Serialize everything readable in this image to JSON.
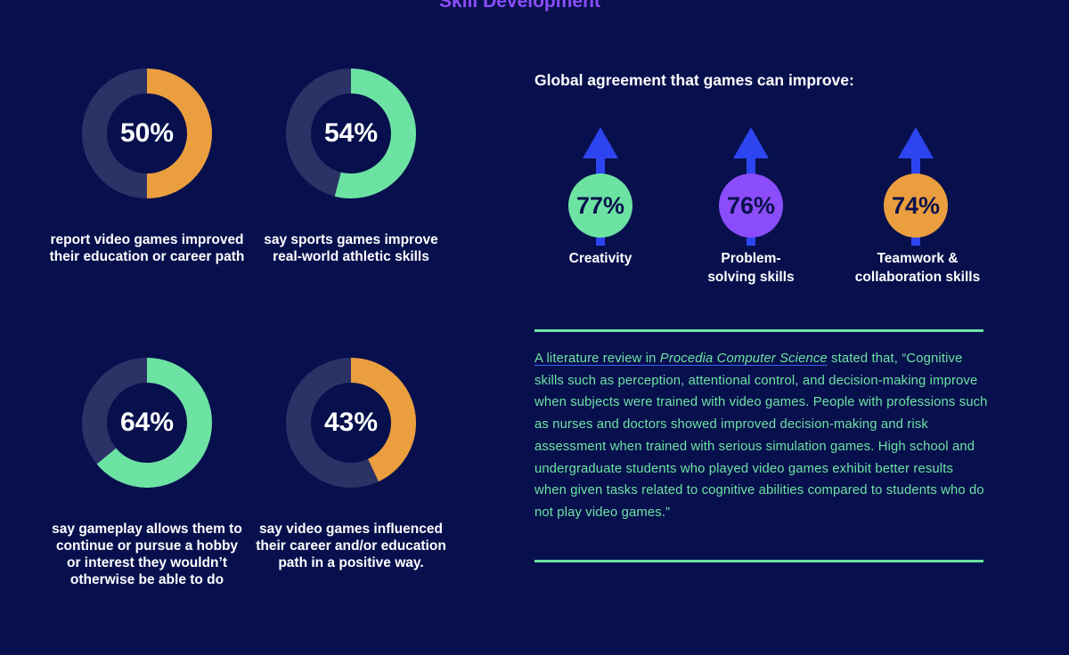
{
  "page": {
    "title": "Skill Development",
    "colors": {
      "background": "#07104d",
      "title": "#8b4dfa",
      "track": "#2b3266",
      "orange": "#eb9e3e",
      "green": "#6de3a3",
      "purple": "#8b4dfa",
      "arrow_blue": "#2d45f0"
    }
  },
  "donuts": [
    {
      "value": "50%",
      "caption": "report video games improved their education or career path",
      "color": "orange"
    },
    {
      "value": "54%",
      "caption": "say sports games improve real-world athletic skills",
      "color": "green"
    },
    {
      "value": "64%",
      "caption": "say gameplay allows them to continue or pursue a hobby or interest they wouldn’t otherwise be able to do",
      "color": "green"
    },
    {
      "value": "43%",
      "caption": "say video games influenced their career and/or education path in a positive way.",
      "color": "orange"
    }
  ],
  "agreement": {
    "title": "Global agreement that games can improve:",
    "items": [
      {
        "value": "77%",
        "label": "Creativity",
        "color": "green"
      },
      {
        "value": "76%",
        "label": "Problem-solving skills",
        "color": "purple"
      },
      {
        "value": "74%",
        "label": "Teamwork & collaboration skills",
        "color": "orange"
      }
    ]
  },
  "quote": {
    "intro": "A literature review in",
    "journal": "Procedia Computer Science",
    "lead": "stated that,",
    "body": "“Cognitive skills such as perception, attentional control, and decision-making improve when subjects were trained with video games. People with professions such as nurses and doctors showed improved decision-making and risk assessment when trained with serious simulation games. High school and undergraduate students who played video games exhibit better results when given tasks related to cognitive abilities compared to students who do not play video games.”"
  },
  "chart_data": [
    {
      "type": "pie",
      "categories": [
        "report video games improved their education or career path",
        "say sports games improve real-world athletic skills",
        "say gameplay allows them to continue or pursue a hobby or interest they wouldn’t otherwise be able to do",
        "say video games influenced their career and/or education path in a positive way."
      ],
      "values": [
        50,
        54,
        64,
        43
      ]
    },
    {
      "type": "bar",
      "title": "Global agreement that games can improve:",
      "categories": [
        "Creativity",
        "Problem-solving skills",
        "Teamwork & collaboration skills"
      ],
      "values": [
        77,
        76,
        74
      ]
    }
  ]
}
